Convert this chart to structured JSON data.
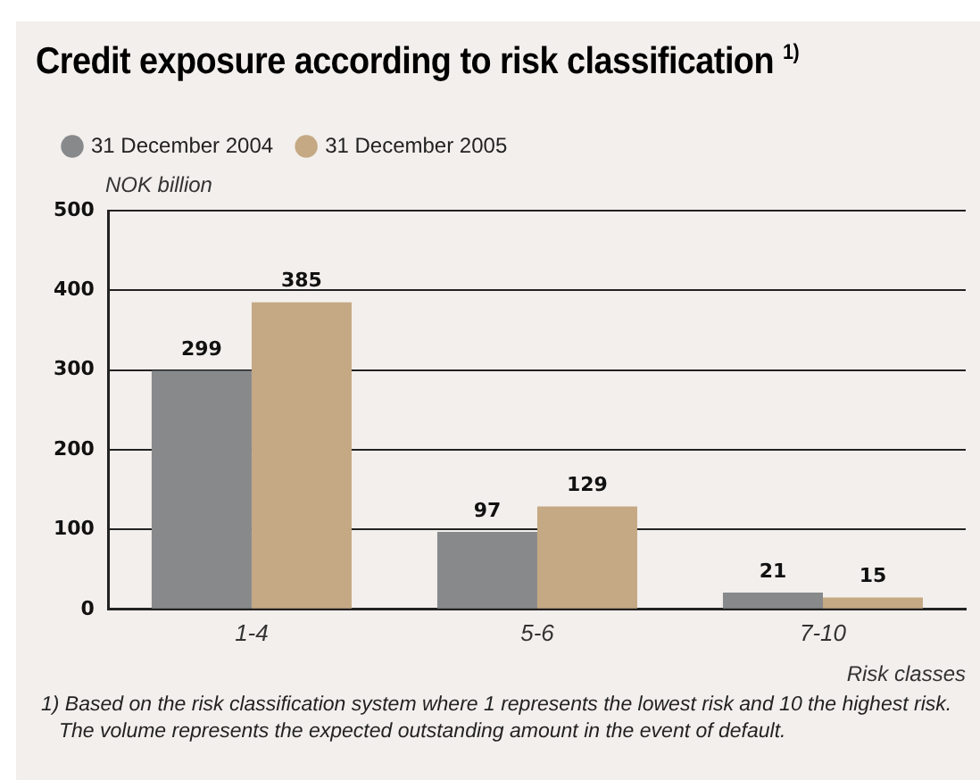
{
  "chart_data": {
    "type": "bar",
    "title": "Credit exposure according to risk classification $^{1)}$",
    "ylabel": "NOK billion",
    "xlabel": "Risk classes",
    "categories": [
      "1-4",
      "5-6",
      "7-10"
    ],
    "series": [
      {
        "name": "31 December 2004",
        "color": "#88898b",
        "values": [
          299,
          97,
          21
        ]
      },
      {
        "name": "31 December 2005",
        "color": "#c4a984",
        "values": [
          385,
          129,
          15
        ]
      }
    ],
    "ylim": [
      0,
      500
    ],
    "yticks": [
      0,
      100,
      200,
      300,
      400,
      500
    ],
    "grid": "y",
    "legend": "top left",
    "data_labels": true,
    "annotations": [
      "1) Based on the risk classification system where 1 represents the lowest risk and 10 the highest risk. The volume represents the expected outstanding amount in the event of default."
    ]
  }
}
